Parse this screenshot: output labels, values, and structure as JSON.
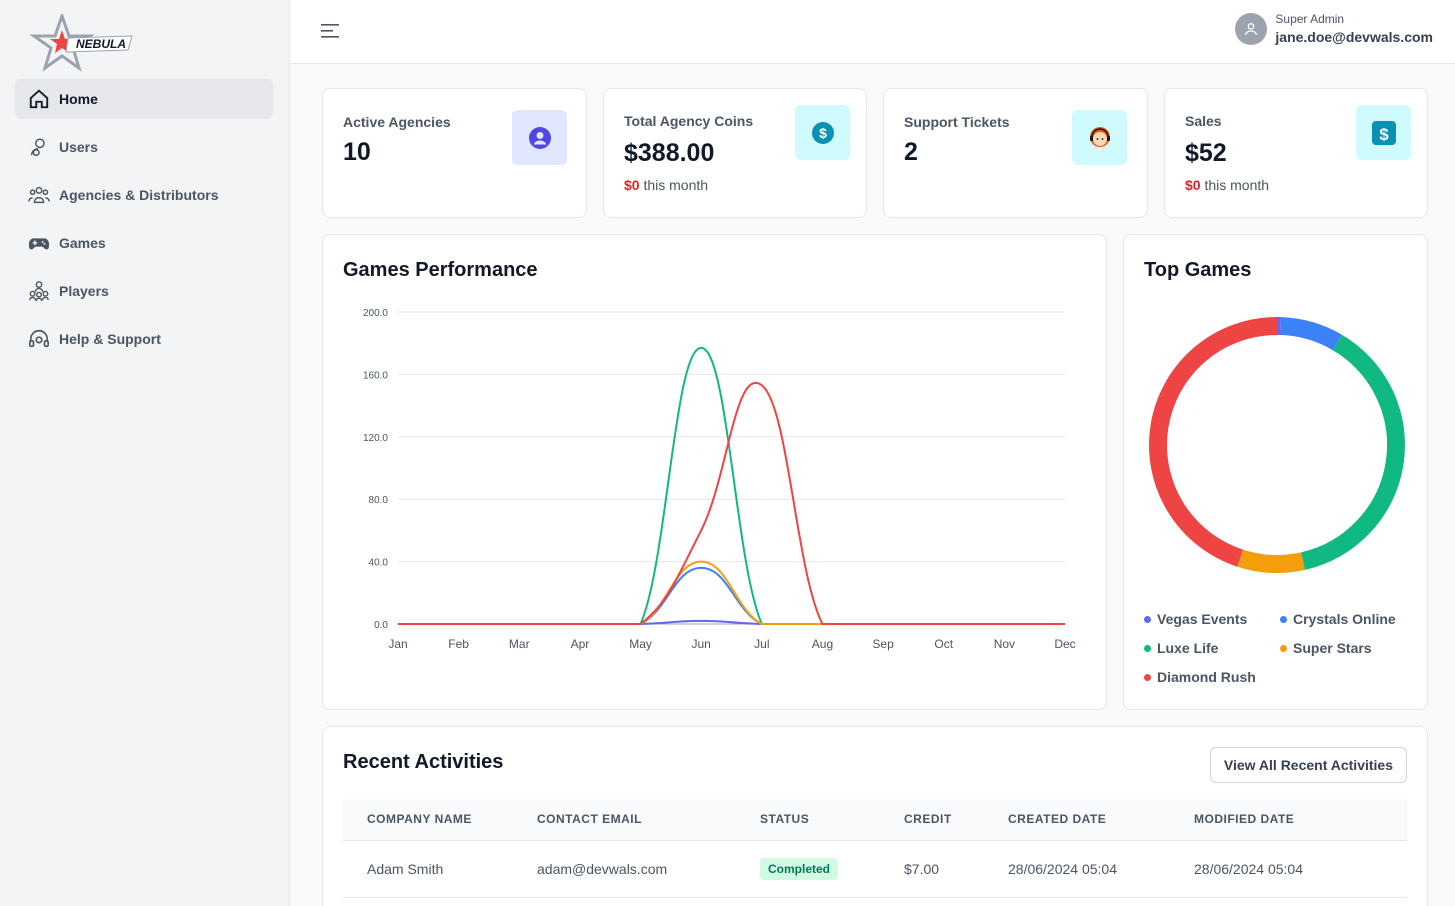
{
  "brand": {
    "name": "NEBULA"
  },
  "nav": {
    "items": [
      {
        "label": "Home",
        "icon": "home-icon",
        "active": true
      },
      {
        "label": "Users",
        "icon": "user-icon",
        "active": false
      },
      {
        "label": "Agencies & Distributors",
        "icon": "group-icon",
        "active": false
      },
      {
        "label": "Games",
        "icon": "gamepad-icon",
        "active": false
      },
      {
        "label": "Players",
        "icon": "players-icon",
        "active": false
      },
      {
        "label": "Help & Support",
        "icon": "headset-icon",
        "active": false
      }
    ]
  },
  "header": {
    "user_role": "Super Admin",
    "user_email": "jane.doe@devwals.com"
  },
  "stats": [
    {
      "title": "Active Agencies",
      "value": "10",
      "icon": "user-circle-icon",
      "icon_bg": "#e0e7ff",
      "icon_color": "#4f46e5"
    },
    {
      "title": "Total Agency Coins",
      "value": "$388.00",
      "sub_amount": "$0",
      "sub_text": " this month",
      "icon": "dollar-circle-icon",
      "icon_bg": "#cffafe",
      "icon_color": "#0891b2"
    },
    {
      "title": "Support Tickets",
      "value": "2",
      "icon": "support-agent-icon",
      "icon_bg": "#cffafe"
    },
    {
      "title": "Sales",
      "value": "$52",
      "sub_amount": "$0",
      "sub_text": " this month",
      "icon": "dollar-square-icon",
      "icon_bg": "#cffafe",
      "icon_color": "#0891b2"
    }
  ],
  "performance": {
    "title": "Games Performance",
    "chart_data": {
      "type": "line",
      "categories": [
        "Jan",
        "Feb",
        "Mar",
        "Apr",
        "May",
        "Jun",
        "Jul",
        "Aug",
        "Sep",
        "Oct",
        "Nov",
        "Dec"
      ],
      "ylim": [
        0,
        200
      ],
      "ytick_labels": [
        "0.0",
        "40.0",
        "80.0",
        "120.0",
        "160.0",
        "200.0"
      ],
      "yticks": [
        0,
        40,
        80,
        120,
        160,
        200
      ],
      "grid": true,
      "series": [
        {
          "values": [
            0,
            0,
            0,
            0,
            0,
            2,
            0,
            0,
            0,
            0,
            0,
            0
          ],
          "color": "#6366f1"
        },
        {
          "values": [
            0,
            0,
            0,
            0,
            0,
            36,
            0,
            0,
            0,
            0,
            0,
            0
          ],
          "color": "#3b82f6"
        },
        {
          "values": [
            0,
            0,
            0,
            0,
            0,
            177,
            0,
            0,
            0,
            0,
            0,
            0
          ],
          "color": "#10b981"
        },
        {
          "values": [
            0,
            0,
            0,
            0,
            0,
            40,
            0,
            0,
            0,
            0,
            0,
            0
          ],
          "color": "#f59e0b"
        },
        {
          "values": [
            0,
            0,
            0,
            0,
            0,
            60,
            153,
            0,
            0,
            0,
            0,
            0
          ],
          "color": "#ef4444"
        }
      ]
    }
  },
  "top_games": {
    "title": "Top Games",
    "chart_data": {
      "type": "pie",
      "slices": [
        {
          "name": "Vegas Events",
          "value": 0.5,
          "color": "#6366f1"
        },
        {
          "name": "Crystals Online",
          "value": 8,
          "color": "#3b82f6"
        },
        {
          "name": "Luxe Life",
          "value": 38,
          "color": "#10b981"
        },
        {
          "name": "Super Stars",
          "value": 8.5,
          "color": "#f59e0b"
        },
        {
          "name": "Diamond Rush",
          "value": 45,
          "color": "#ef4444"
        }
      ],
      "legend_position": "bottom"
    }
  },
  "activities": {
    "title": "Recent Activities",
    "view_all_label": "View All Recent Activities",
    "columns": [
      "COMPANY NAME",
      "CONTACT EMAIL",
      "STATUS",
      "CREDIT",
      "CREATED DATE",
      "MODIFIED DATE"
    ],
    "rows": [
      {
        "company": "Adam Smith",
        "email": "adam@devwals.com",
        "status": "Completed",
        "credit": "$7.00",
        "created": "28/06/2024 05:04",
        "modified": "28/06/2024 05:04"
      }
    ]
  }
}
